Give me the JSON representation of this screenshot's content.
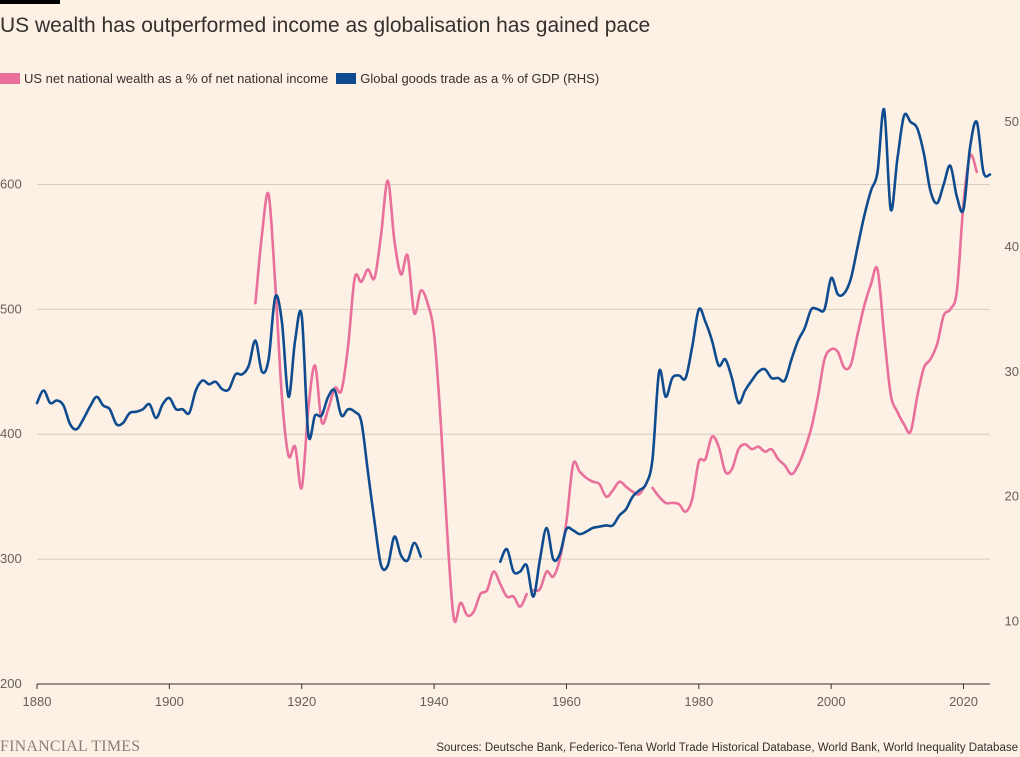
{
  "title": "US wealth has outperformed income as globalisation has gained pace",
  "brand": "FINANCIAL TIMES",
  "source": "Sources: Deutsche Bank, Federico-Tena World Trade Historical Database, World Bank, World Inequality Database",
  "colors": {
    "background": "#fdf1e5",
    "wealth": "#e9709a",
    "trade": "#0f4c8f",
    "grid": "#d8ccc1",
    "axis": "#33302e"
  },
  "chart_data": {
    "type": "line",
    "title": "US wealth has outperformed income as globalisation has gained pace",
    "grid": true,
    "legend_position": "top-left",
    "x_range": [
      1880,
      2024
    ],
    "x_ticks": [
      1880,
      1900,
      1920,
      1940,
      1960,
      1980,
      2000,
      2020
    ],
    "y_left_range": [
      200,
      650
    ],
    "y_left_ticks": [
      200,
      300,
      400,
      500,
      600
    ],
    "y_right_range": [
      5,
      50
    ],
    "y_right_ticks": [
      10,
      20,
      30,
      40,
      50
    ],
    "series": [
      {
        "name": "US net national wealth as a % of net national income",
        "axis": "left",
        "segments": [
          [
            [
              1913,
              505
            ],
            [
              1914,
              560
            ],
            [
              1915,
              592
            ],
            [
              1916,
              520
            ],
            [
              1917,
              430
            ],
            [
              1918,
              383
            ],
            [
              1919,
              390
            ],
            [
              1920,
              357
            ],
            [
              1921,
              420
            ],
            [
              1922,
              455
            ],
            [
              1923,
              410
            ],
            [
              1924,
              420
            ],
            [
              1925,
              437
            ],
            [
              1926,
              435
            ],
            [
              1927,
              470
            ],
            [
              1928,
              525
            ],
            [
              1929,
              522
            ],
            [
              1930,
              532
            ],
            [
              1931,
              525
            ],
            [
              1932,
              560
            ],
            [
              1933,
              603
            ],
            [
              1934,
              555
            ],
            [
              1935,
              528
            ],
            [
              1936,
              543
            ],
            [
              1937,
              497
            ],
            [
              1938,
              515
            ],
            [
              1939,
              505
            ],
            [
              1940,
              480
            ],
            [
              1941,
              410
            ],
            [
              1942,
              320
            ],
            [
              1943,
              252
            ],
            [
              1944,
              265
            ],
            [
              1945,
              255
            ],
            [
              1946,
              258
            ],
            [
              1947,
              272
            ],
            [
              1948,
              275
            ],
            [
              1949,
              290
            ],
            [
              1950,
              280
            ],
            [
              1951,
              270
            ],
            [
              1952,
              270
            ],
            [
              1953,
              262
            ],
            [
              1954,
              272
            ]
          ],
          [
            [
              1955,
              275
            ],
            [
              1956,
              276
            ],
            [
              1957,
              290
            ],
            [
              1958,
              286
            ],
            [
              1959,
              300
            ],
            [
              1960,
              330
            ],
            [
              1961,
              376
            ],
            [
              1962,
              370
            ],
            [
              1963,
              365
            ],
            [
              1964,
              362
            ],
            [
              1965,
              360
            ],
            [
              1966,
              350
            ],
            [
              1967,
              355
            ],
            [
              1968,
              362
            ],
            [
              1969,
              358
            ],
            [
              1970,
              354
            ],
            [
              1971,
              352
            ],
            [
              1972,
              360
            ]
          ],
          [
            [
              1973,
              357
            ],
            [
              1974,
              350
            ],
            [
              1975,
              345
            ],
            [
              1976,
              345
            ],
            [
              1977,
              344
            ],
            [
              1978,
              338
            ],
            [
              1979,
              348
            ],
            [
              1980,
              378
            ],
            [
              1981,
              380
            ],
            [
              1982,
              398
            ],
            [
              1983,
              390
            ],
            [
              1984,
              370
            ],
            [
              1985,
              372
            ],
            [
              1986,
              388
            ],
            [
              1987,
              392
            ],
            [
              1988,
              388
            ],
            [
              1989,
              390
            ],
            [
              1990,
              386
            ],
            [
              1991,
              388
            ],
            [
              1992,
              380
            ],
            [
              1993,
              375
            ],
            [
              1994,
              368
            ],
            [
              1995,
              375
            ],
            [
              1996,
              388
            ],
            [
              1997,
              405
            ],
            [
              1998,
              430
            ],
            [
              1999,
              460
            ],
            [
              2000,
              468
            ],
            [
              2001,
              466
            ],
            [
              2002,
              453
            ],
            [
              2003,
              456
            ],
            [
              2004,
              480
            ],
            [
              2005,
              503
            ],
            [
              2006,
              520
            ],
            [
              2007,
              532
            ],
            [
              2008,
              480
            ],
            [
              2009,
              432
            ],
            [
              2010,
              418
            ],
            [
              2011,
              408
            ],
            [
              2012,
              402
            ],
            [
              2013,
              430
            ],
            [
              2014,
              453
            ],
            [
              2015,
              460
            ],
            [
              2016,
              472
            ],
            [
              2017,
              495
            ],
            [
              2018,
              500
            ],
            [
              2019,
              515
            ],
            [
              2020,
              585
            ],
            [
              2021,
              623
            ],
            [
              2022,
              610
            ]
          ]
        ]
      },
      {
        "name": "Global goods trade as a % of GDP (RHS)",
        "axis": "right",
        "segments": [
          [
            [
              1880,
              27.5
            ],
            [
              1881,
              28.5
            ],
            [
              1882,
              27.5
            ],
            [
              1883,
              27.7
            ],
            [
              1884,
              27.3
            ],
            [
              1885,
              25.8
            ],
            [
              1886,
              25.4
            ],
            [
              1887,
              26.2
            ],
            [
              1888,
              27.2
            ],
            [
              1889,
              28.0
            ],
            [
              1890,
              27.3
            ],
            [
              1891,
              27.0
            ],
            [
              1892,
              25.8
            ],
            [
              1893,
              25.9
            ],
            [
              1894,
              26.7
            ],
            [
              1895,
              26.8
            ],
            [
              1896,
              27.0
            ],
            [
              1897,
              27.4
            ],
            [
              1898,
              26.3
            ],
            [
              1899,
              27.4
            ],
            [
              1900,
              27.9
            ],
            [
              1901,
              27.0
            ],
            [
              1902,
              27.0
            ],
            [
              1903,
              26.7
            ],
            [
              1904,
              28.5
            ],
            [
              1905,
              29.3
            ],
            [
              1906,
              29.0
            ],
            [
              1907,
              29.2
            ],
            [
              1908,
              28.6
            ],
            [
              1909,
              28.6
            ],
            [
              1910,
              29.8
            ],
            [
              1911,
              29.8
            ],
            [
              1912,
              30.5
            ],
            [
              1913,
              32.5
            ],
            [
              1914,
              30.0
            ],
            [
              1915,
              31.0
            ],
            [
              1916,
              36.0
            ],
            [
              1917,
              34.0
            ],
            [
              1918,
              28.0
            ],
            [
              1919,
              32.5
            ],
            [
              1920,
              34.5
            ],
            [
              1921,
              25.0
            ],
            [
              1922,
              26.5
            ],
            [
              1923,
              26.5
            ],
            [
              1924,
              28.0
            ],
            [
              1925,
              28.5
            ],
            [
              1926,
              26.5
            ],
            [
              1927,
              27.0
            ],
            [
              1928,
              26.8
            ],
            [
              1929,
              26.0
            ],
            [
              1930,
              22.0
            ],
            [
              1931,
              18.0
            ],
            [
              1932,
              14.5
            ],
            [
              1933,
              14.5
            ],
            [
              1934,
              16.8
            ],
            [
              1935,
              15.3
            ],
            [
              1936,
              14.9
            ],
            [
              1937,
              16.3
            ],
            [
              1938,
              15.2
            ]
          ],
          [
            [
              1950,
              14.8
            ],
            [
              1951,
              15.8
            ],
            [
              1952,
              14.0
            ],
            [
              1953,
              14.0
            ],
            [
              1954,
              14.5
            ],
            [
              1955,
              12.0
            ],
            [
              1956,
              15.0
            ],
            [
              1957,
              17.5
            ],
            [
              1958,
              15.0
            ],
            [
              1959,
              15.4
            ],
            [
              1960,
              17.4
            ],
            [
              1961,
              17.3
            ],
            [
              1962,
              17.0
            ],
            [
              1963,
              17.2
            ],
            [
              1964,
              17.5
            ],
            [
              1965,
              17.6
            ],
            [
              1966,
              17.7
            ],
            [
              1967,
              17.7
            ],
            [
              1968,
              18.5
            ],
            [
              1969,
              19.0
            ],
            [
              1970,
              20.0
            ],
            [
              1971,
              20.5
            ],
            [
              1972,
              21.0
            ],
            [
              1973,
              23.0
            ],
            [
              1974,
              30.0
            ],
            [
              1975,
              28.0
            ],
            [
              1976,
              29.5
            ],
            [
              1977,
              29.7
            ],
            [
              1978,
              29.5
            ],
            [
              1979,
              32.0
            ],
            [
              1980,
              35.0
            ],
            [
              1981,
              34.0
            ],
            [
              1982,
              32.5
            ],
            [
              1983,
              30.5
            ],
            [
              1984,
              31.0
            ],
            [
              1985,
              29.5
            ],
            [
              1986,
              27.5
            ],
            [
              1987,
              28.5
            ],
            [
              1988,
              29.3
            ],
            [
              1989,
              30.0
            ],
            [
              1990,
              30.2
            ],
            [
              1991,
              29.5
            ],
            [
              1992,
              29.5
            ],
            [
              1993,
              29.3
            ],
            [
              1994,
              31.0
            ],
            [
              1995,
              32.5
            ],
            [
              1996,
              33.5
            ],
            [
              1997,
              35.0
            ],
            [
              1998,
              35.0
            ],
            [
              1999,
              35.0
            ],
            [
              2000,
              37.5
            ],
            [
              2001,
              36.2
            ],
            [
              2002,
              36.3
            ],
            [
              2003,
              37.5
            ],
            [
              2004,
              40.0
            ],
            [
              2005,
              42.5
            ],
            [
              2006,
              44.5
            ],
            [
              2007,
              46.0
            ],
            [
              2008,
              51.0
            ],
            [
              2009,
              43.0
            ],
            [
              2010,
              47.0
            ],
            [
              2011,
              50.5
            ],
            [
              2012,
              50.0
            ],
            [
              2013,
              49.5
            ],
            [
              2014,
              47.5
            ],
            [
              2015,
              44.5
            ],
            [
              2016,
              43.5
            ],
            [
              2017,
              45.0
            ],
            [
              2018,
              46.5
            ],
            [
              2019,
              44.0
            ],
            [
              2020,
              43.0
            ],
            [
              2021,
              48.0
            ],
            [
              2022,
              50.0
            ],
            [
              2023,
              46.0
            ],
            [
              2024,
              45.8
            ]
          ]
        ]
      }
    ]
  }
}
